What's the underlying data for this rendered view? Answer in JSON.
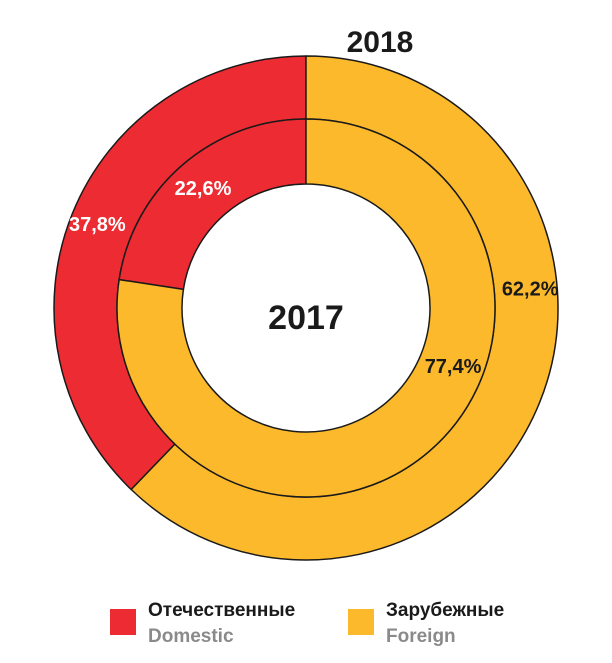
{
  "chart_data": {
    "type": "pie",
    "subtype": "nested-donut",
    "grid": false,
    "legend_position": "bottom",
    "series": [
      {
        "name": "2018",
        "ring": "outer",
        "values": [
          37.8,
          62.2
        ],
        "labels": [
          "37,8%",
          "62,2%"
        ]
      },
      {
        "name": "2017",
        "ring": "inner",
        "values": [
          22.6,
          77.4
        ],
        "labels": [
          "22,6%",
          "77,4%"
        ]
      }
    ],
    "categories": [
      {
        "name": "Отечественные",
        "name_en": "Domestic",
        "color": "#ed2b32"
      },
      {
        "name": "Зарубежные",
        "name_en": "Foreign",
        "color": "#fbb92b"
      }
    ],
    "label_colors": [
      "#ffffff",
      "#1a1a1a"
    ],
    "stroke_color": "#1a1a1a"
  }
}
